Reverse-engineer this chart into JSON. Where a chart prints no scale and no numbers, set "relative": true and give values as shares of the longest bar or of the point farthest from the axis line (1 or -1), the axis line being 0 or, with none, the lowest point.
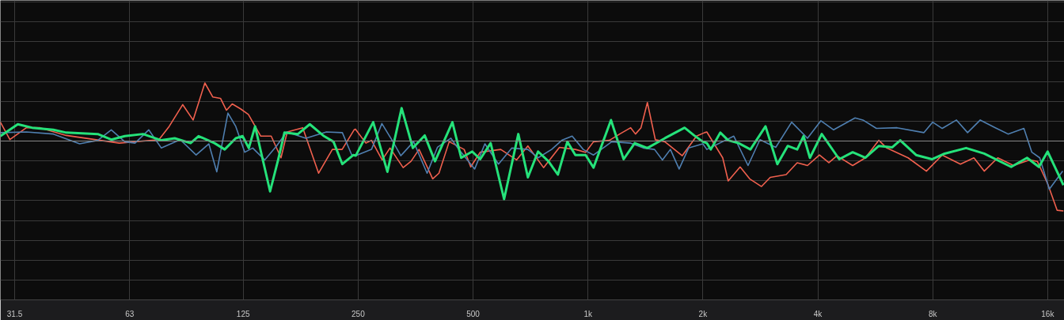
{
  "chart_data": {
    "type": "line",
    "relative": true,
    "log": "x",
    "grid": true,
    "xlim": [
      28.9,
      17700
    ],
    "xticks": [
      31.5,
      63,
      125,
      250,
      500,
      {
        "value": 1000,
        "label": "1k"
      },
      {
        "value": 2000,
        "label": "2k"
      },
      {
        "value": 4000,
        "label": "4k"
      },
      {
        "value": 8000,
        "label": "8k"
      },
      {
        "value": 16000,
        "label": "16k"
      }
    ],
    "series": [
      {
        "color": "#f0604e",
        "x": [
          28.9,
          30.6,
          33.8,
          36.7,
          43.0,
          59.2,
          75.2,
          80.0,
          86.8,
          92.4,
          99.2,
          104,
          109,
          113,
          117,
          123,
          129,
          139,
          148,
          157,
          163,
          179,
          197,
          214,
          227,
          244,
          246,
          262,
          271,
          289,
          303,
          328,
          344,
          361,
          392,
          407,
          433,
          474,
          493,
          522,
          591,
          650,
          696,
          765,
          842,
          927,
          986,
          1034,
          1138,
          1211,
          1294,
          1332,
          1377,
          1431,
          1501,
          1590,
          1766,
          1925,
          2020,
          2048,
          2254,
          2330,
          2504,
          2652,
          2848,
          3002,
          3304,
          3532,
          3758,
          4040,
          4276,
          4488,
          4936,
          5328,
          5780,
          6064,
          6896,
          7700,
          8472,
          9456,
          10256,
          10912,
          11840,
          13024,
          14328,
          15032,
          16000,
          16944,
          17600
        ],
        "values": [
          0.27,
          0.02,
          0.19,
          0.19,
          0.08,
          -0.03,
          0.02,
          0.21,
          0.52,
          0.3,
          0.83,
          0.63,
          0.61,
          0.44,
          0.53,
          0.46,
          0.38,
          0.07,
          0.07,
          -0.24,
          0.13,
          0.19,
          -0.46,
          -0.12,
          -0.12,
          0.16,
          0.17,
          -0.03,
          0.01,
          -0.27,
          -0.1,
          -0.38,
          -0.29,
          -0.12,
          -0.54,
          -0.46,
          -0.01,
          -0.12,
          -0.37,
          -0.16,
          -0.12,
          -0.27,
          -0.07,
          -0.38,
          -0.09,
          -0.12,
          -0.16,
          -0.01,
          0.01,
          0.1,
          0.19,
          0.1,
          0.19,
          0.55,
          0.02,
          -0.01,
          -0.21,
          0.07,
          0.12,
          0.13,
          -0.24,
          -0.57,
          -0.37,
          -0.54,
          -0.65,
          -0.52,
          -0.48,
          -0.31,
          -0.35,
          -0.2,
          -0.31,
          -0.21,
          -0.35,
          -0.24,
          0.01,
          -0.1,
          -0.24,
          -0.43,
          -0.2,
          -0.33,
          -0.24,
          -0.43,
          -0.24,
          -0.35,
          -0.27,
          -0.29,
          -0.61,
          -0.99,
          -1.0
        ]
      },
      {
        "color": "#4f7fb0",
        "x": [
          28.9,
          33.8,
          39.8,
          46.6,
          52.0,
          56.4,
          61.2,
          65.1,
          70.7,
          76.3,
          85.5,
          94.1,
          101.6,
          106.6,
          114,
          119.5,
          126.2,
          132.4,
          142.3,
          152.9,
          162.5,
          182.4,
          206.5,
          227.3,
          240.6,
          246.4,
          271,
          288.5,
          308.5,
          323.5,
          349.3,
          379,
          403.3,
          437.5,
          458.8,
          505,
          537,
          583,
          632,
          696,
          740,
          803,
          854,
          909,
          972,
          1034,
          1154,
          1294,
          1397,
          1494,
          1567,
          1644,
          1733,
          1835,
          2000,
          2048,
          2410,
          2626,
          2822,
          3104,
          3416,
          3758,
          4076,
          4400,
          5008,
          5252,
          5696,
          6452,
          7588,
          8000,
          8472,
          9232,
          9872,
          10656,
          11672,
          12600,
          13864,
          14544,
          15256,
          16160,
          17520
        ],
        "values": [
          0.12,
          0.13,
          0.1,
          -0.04,
          0.01,
          0.16,
          -0.01,
          -0.03,
          0.16,
          -0.1,
          0.02,
          -0.2,
          -0.04,
          -0.44,
          0.4,
          0.21,
          -0.16,
          -0.1,
          -0.27,
          -0.07,
          0.13,
          0.04,
          0.13,
          0.12,
          -0.2,
          -0.21,
          -0.12,
          0.25,
          -0.01,
          -0.21,
          -0.01,
          -0.46,
          -0.09,
          0.04,
          -0.12,
          -0.4,
          -0.04,
          -0.33,
          -0.1,
          -0.12,
          -0.24,
          -0.12,
          0.01,
          0.07,
          -0.12,
          -0.2,
          -0.01,
          -0.03,
          -0.1,
          -0.12,
          -0.27,
          -0.12,
          -0.4,
          -0.1,
          -0.04,
          -0.12,
          0.07,
          -0.35,
          0.02,
          -0.09,
          0.27,
          0.04,
          0.29,
          0.16,
          0.33,
          0.3,
          0.18,
          0.19,
          0.12,
          0.27,
          0.18,
          0.3,
          0.12,
          0.3,
          0.19,
          0.1,
          0.18,
          -0.16,
          -0.24,
          -0.69,
          -0.43
        ]
      },
      {
        "color": "#25e27a",
        "x": [
          28.9,
          32.1,
          35.0,
          39.8,
          43.0,
          52.0,
          56.4,
          61.2,
          68.3,
          76.3,
          82.7,
          91.0,
          95.5,
          105.1,
          111.8,
          119.5,
          124.5,
          129.3,
          134.3,
          140.3,
          147,
          154.3,
          160.3,
          173.9,
          186.8,
          203.5,
          215.5,
          227.3,
          243,
          246.4,
          273.8,
          298.3,
          325,
          347.8,
          373.5,
          397.5,
          441.5,
          465.5,
          497.5,
          522,
          556,
          603,
          657,
          696,
          740,
          788,
          834,
          883,
          927,
          986,
          1034,
          1149,
          1240,
          1326,
          1431,
          1590,
          1791,
          1897,
          2000,
          2048,
          2098,
          2222,
          2330,
          2480,
          2664,
          2918,
          3134,
          3336,
          3532,
          3670,
          3814,
          4096,
          4552,
          4936,
          5328,
          5780,
          6268,
          6576,
          7236,
          7960,
          8592,
          9784,
          10912,
          12840,
          14128,
          15176,
          16000,
          17600
        ],
        "values": [
          0.07,
          0.24,
          0.19,
          0.16,
          0.12,
          0.1,
          0.02,
          0.07,
          0.1,
          0.01,
          0.04,
          -0.03,
          0.07,
          -0.03,
          -0.12,
          0.04,
          0.07,
          -0.1,
          0.21,
          -0.24,
          -0.72,
          -0.27,
          0.12,
          0.1,
          0.24,
          0.07,
          -0.01,
          -0.33,
          -0.2,
          -0.21,
          0.27,
          -0.44,
          0.47,
          -0.1,
          0.08,
          -0.29,
          0.27,
          -0.24,
          -0.15,
          -0.26,
          -0.03,
          -0.83,
          0.1,
          -0.52,
          -0.15,
          -0.29,
          -0.48,
          -0.01,
          -0.2,
          -0.2,
          -0.38,
          0.3,
          -0.26,
          -0.03,
          -0.1,
          0.04,
          0.19,
          0.08,
          -0.01,
          -0.03,
          -0.12,
          0.12,
          0.01,
          -0.03,
          -0.12,
          0.21,
          -0.33,
          -0.07,
          -0.12,
          0.07,
          -0.24,
          0.1,
          -0.26,
          -0.16,
          -0.24,
          -0.07,
          -0.09,
          0.01,
          -0.2,
          -0.26,
          -0.18,
          -0.1,
          -0.18,
          -0.37,
          -0.24,
          -0.37,
          -0.15,
          -0.63
        ]
      }
    ]
  }
}
